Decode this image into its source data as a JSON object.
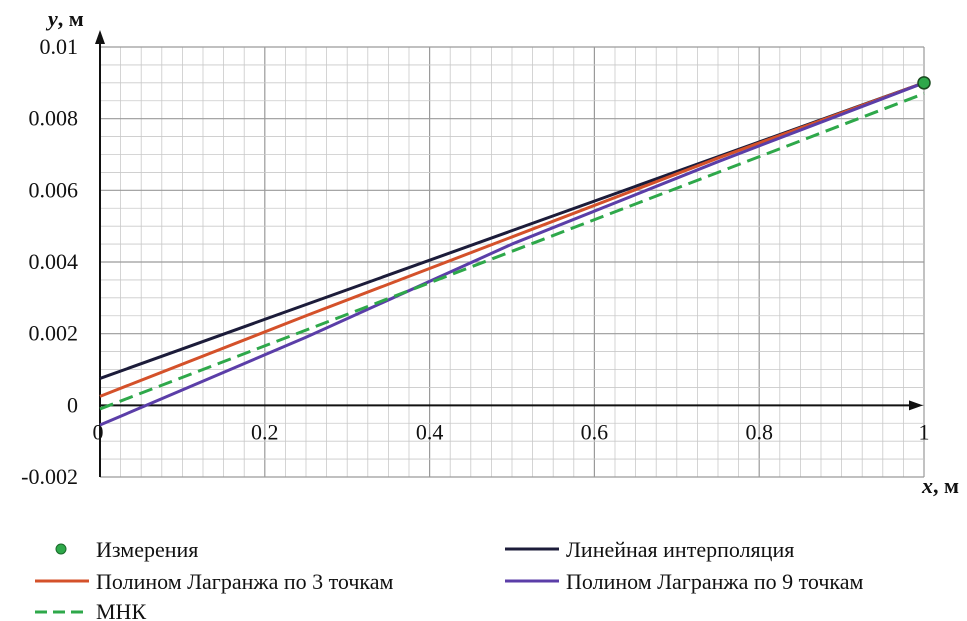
{
  "chart_data": {
    "type": "line",
    "xlabel_var": "x",
    "xlabel_unit": ", м",
    "ylabel_var": "y",
    "ylabel_unit": ", м",
    "xlim": [
      0,
      1
    ],
    "ylim": [
      -0.002,
      0.01
    ],
    "x_ticks": [
      0,
      0.2,
      0.4,
      0.6,
      0.8,
      1
    ],
    "x_tick_labels": [
      "0",
      "0.2",
      "0.4",
      "0.6",
      "0.8",
      "1"
    ],
    "y_ticks": [
      -0.002,
      0,
      0.002,
      0.004,
      0.006,
      0.008,
      0.01
    ],
    "y_tick_labels": [
      "-0.002",
      "0",
      "0.002",
      "0.004",
      "0.006",
      "0.008",
      "0.01"
    ],
    "grid": true,
    "legend_position": "bottom",
    "measurements": {
      "name": "Измерения",
      "color": "#2ea84a",
      "points": [
        {
          "x": 1.0,
          "y": 0.009
        }
      ]
    },
    "series": [
      {
        "name": "Линейная интерполяция",
        "color": "#1c1c3a",
        "dash": "solid",
        "x": [
          0,
          1
        ],
        "y": [
          0.00075,
          0.009
        ]
      },
      {
        "name": "Полином Лагранжа по 3 точкам",
        "color": "#d4512a",
        "dash": "solid",
        "x": [
          0,
          0.25,
          0.5,
          0.75,
          1
        ],
        "y": [
          0.00025,
          0.0025,
          0.0047,
          0.0069,
          0.009
        ]
      },
      {
        "name": "Полином Лагранжа по 9 точкам",
        "color": "#5b3ea8",
        "dash": "solid",
        "x": [
          0,
          0.25,
          0.5,
          0.75,
          1
        ],
        "y": [
          -0.00055,
          0.0019,
          0.0045,
          0.0068,
          0.009
        ]
      },
      {
        "name": "МНК",
        "color": "#2ea84a",
        "dash": "dashed",
        "x": [
          0,
          1
        ],
        "y": [
          -0.0001,
          0.0087
        ]
      }
    ]
  }
}
